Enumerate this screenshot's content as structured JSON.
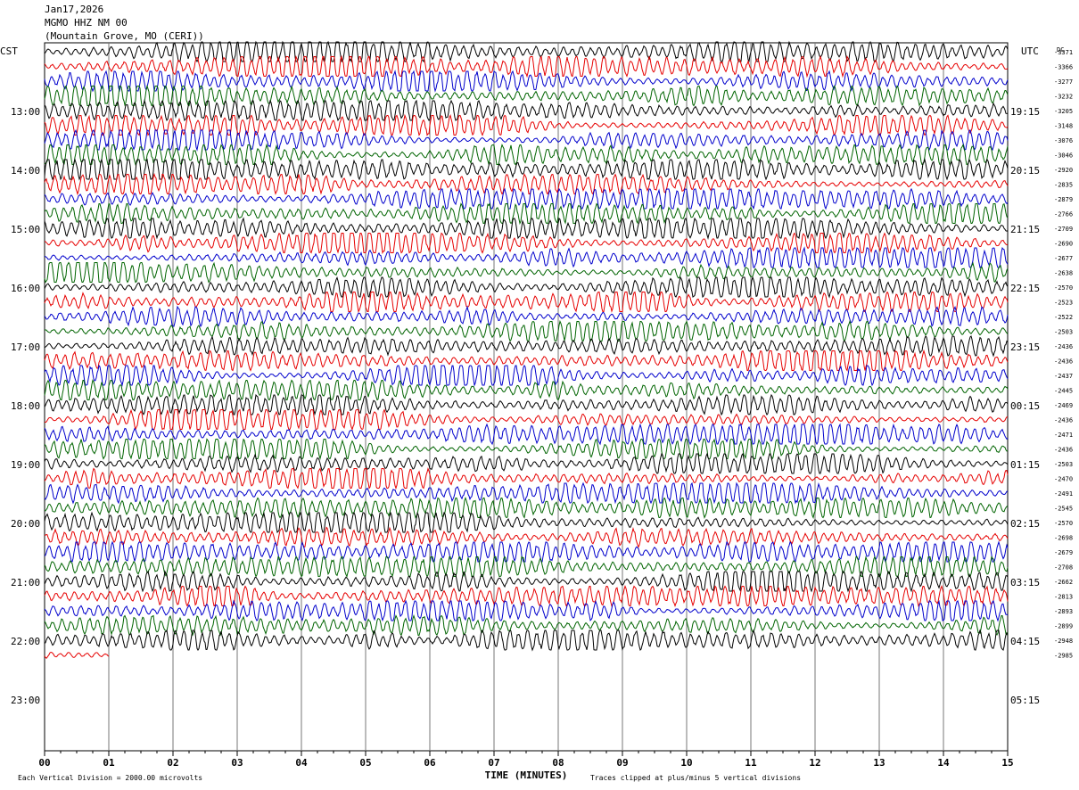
{
  "header": {
    "date": "Jan17,2026",
    "station": "MGMO HHZ NM 00",
    "location": "(Mountain Grove, MO (CERI))"
  },
  "chart_data": {
    "type": "line",
    "title": "MGMO HHZ NM 00",
    "xlabel": "TIME (MINUTES)",
    "x_ticks": [
      "00",
      "01",
      "02",
      "03",
      "04",
      "05",
      "06",
      "07",
      "08",
      "09",
      "10",
      "11",
      "12",
      "13",
      "14",
      "15"
    ],
    "xlim": [
      0,
      15
    ],
    "left_axis_label": "CST",
    "right_axis_label": "UTC",
    "dc_label": "DC",
    "cst_hours": [
      "13:00",
      "14:00",
      "15:00",
      "16:00",
      "17:00",
      "18:00",
      "19:00",
      "20:00",
      "21:00",
      "22:00",
      "23:00"
    ],
    "utc_hours": [
      "19:15",
      "20:15",
      "21:15",
      "22:15",
      "23:15",
      "00:15",
      "01:15",
      "02:15",
      "03:15",
      "04:15",
      "05:15"
    ],
    "dc_offsets": [
      "-3371",
      "-3366",
      "-3277",
      "-3232",
      "-3205",
      "-3148",
      "-3076",
      "-3046",
      "-2920",
      "-2835",
      "-2879",
      "-2766",
      "-2709",
      "-2690",
      "-2677",
      "-2638",
      "-2570",
      "-2523",
      "-2522",
      "-2503",
      "-2436",
      "-2436",
      "-2437",
      "-2445",
      "-2469",
      "-2436",
      "-2471",
      "-2436",
      "-2503",
      "-2470",
      "-2491",
      "-2545",
      "-2570",
      "-2698",
      "-2679",
      "-2708",
      "-2662",
      "-2813",
      "-2893",
      "-2899",
      "-2948",
      "-2985"
    ],
    "trace_colors": [
      "#000000",
      "#e60000",
      "#0000cc",
      "#006400"
    ],
    "trace_count": 42,
    "last_trace_minutes": 1.0,
    "footer_left": "Each Vertical Division = 2000.00 microvolts",
    "footer_right": "Traces clipped at plus/minus 5 vertical divisions",
    "grid": true
  }
}
